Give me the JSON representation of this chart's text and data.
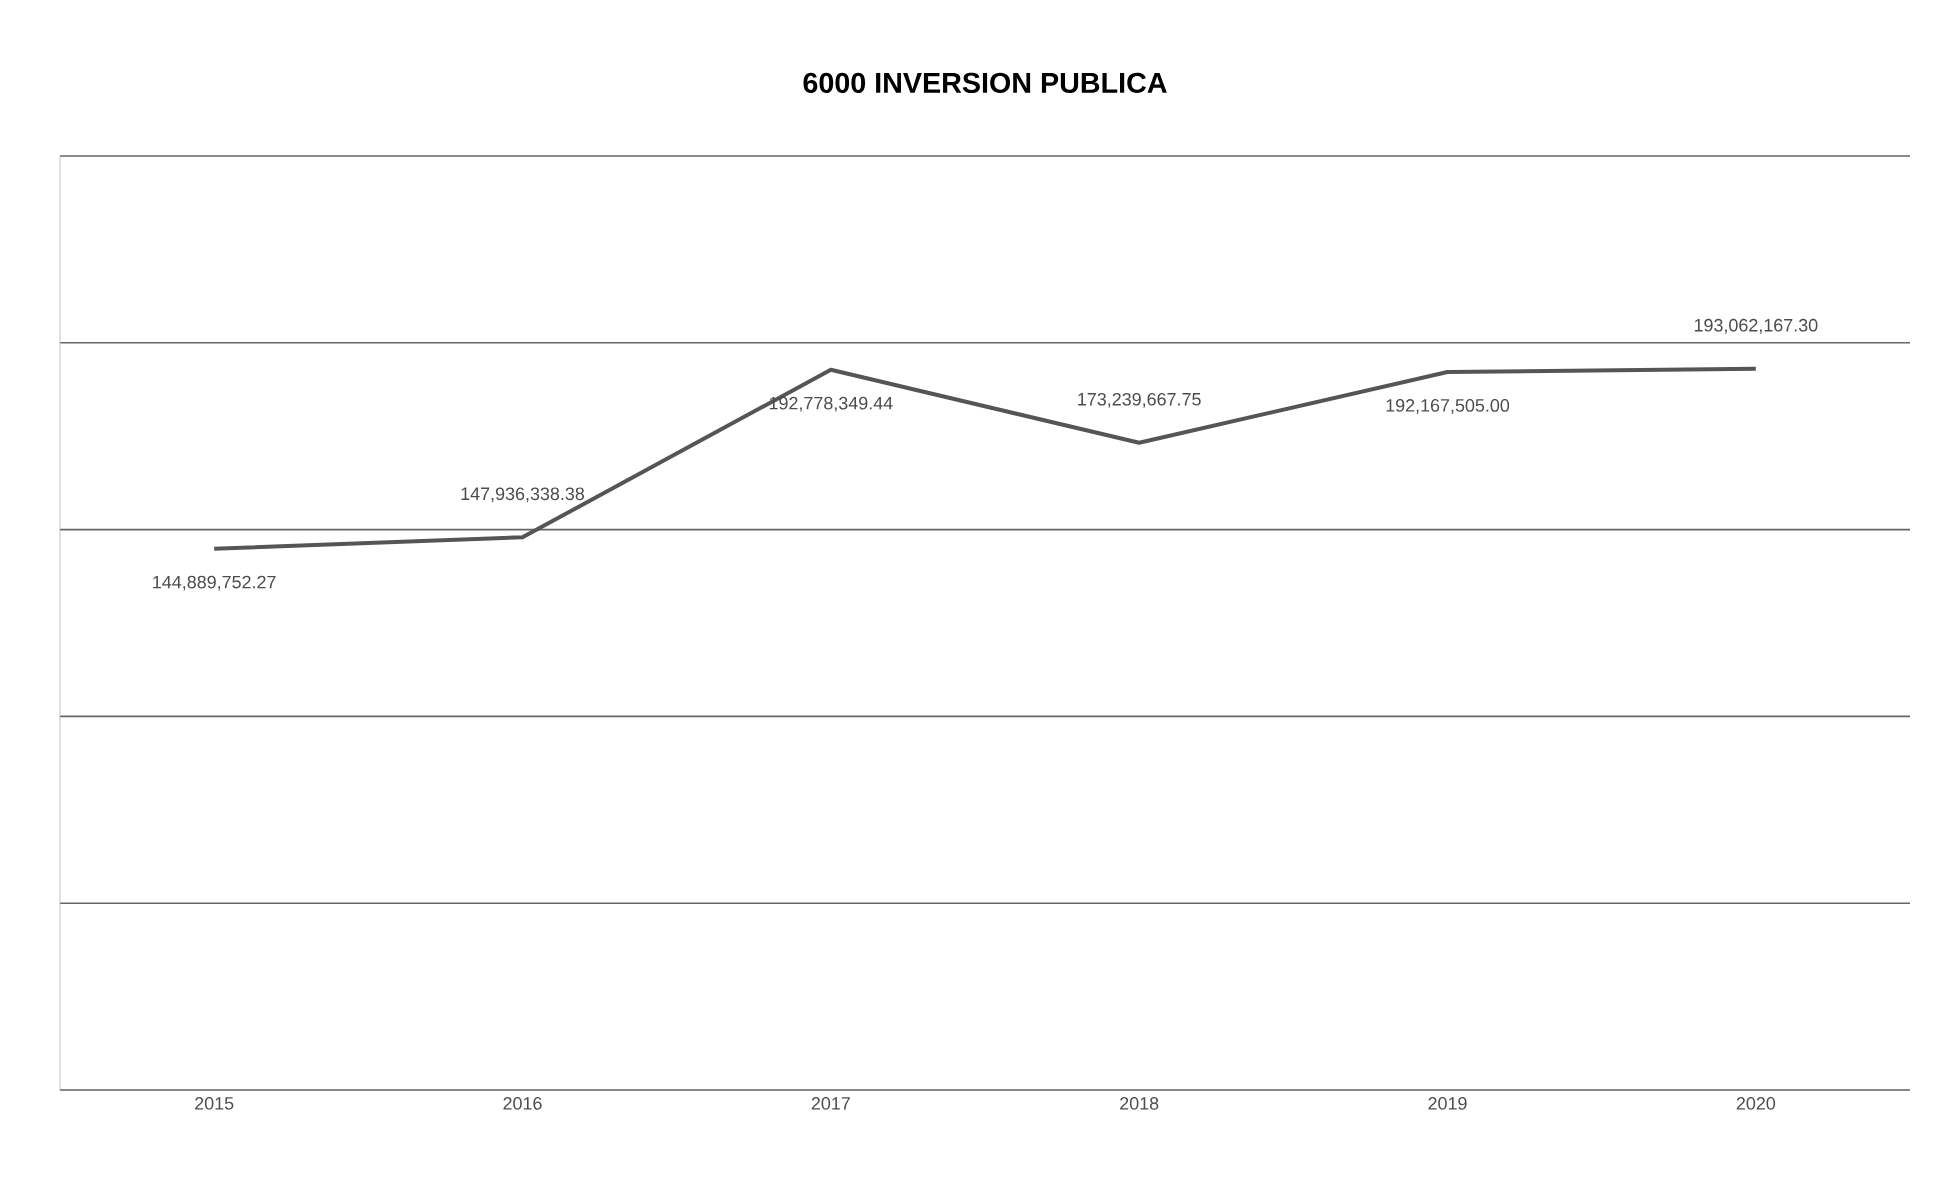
{
  "chart_data": {
    "type": "line",
    "title": "6000 INVERSION PUBLICA",
    "categories": [
      "2015",
      "2016",
      "2017",
      "2018",
      "2019",
      "2020"
    ],
    "series": [
      {
        "color": "#555555",
        "values": [
          144889752.27,
          147936338.38,
          192778349.44,
          173239667.75,
          192167505.0,
          193062167.3
        ],
        "value_labels": [
          "144,889,752.27",
          "147,936,338.38",
          "192,778,349.44",
          "173,239,667.75",
          "192,167,505.00",
          "193,062,167.30"
        ]
      }
    ],
    "ylim": [
      0,
      250000000
    ],
    "yticks": [
      {
        "value": 0,
        "label": null
      },
      {
        "value": 50000000,
        "label": null
      },
      {
        "value": 100000000,
        "label": null
      },
      {
        "value": 150000000,
        "label": null
      },
      {
        "value": 200000000,
        "label": null
      },
      {
        "value": 250000000,
        "label": null
      }
    ],
    "grid": "y",
    "tick_labels": "x",
    "marker": "none",
    "line_style": "solid"
  }
}
